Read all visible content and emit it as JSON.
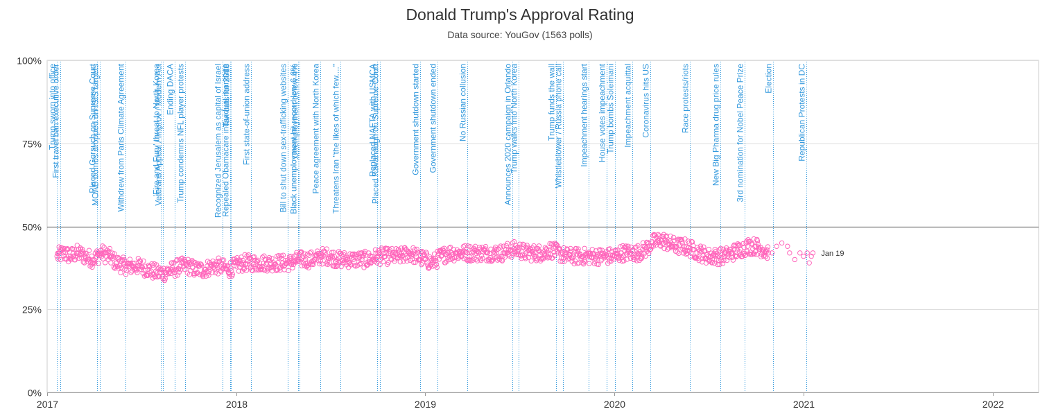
{
  "chart_data": {
    "type": "scatter",
    "title": "Donald Trump's Approval Rating",
    "subtitle": "Data source: YouGov (1563 polls)",
    "x_axis": {
      "type": "date",
      "min": "2017-01-01",
      "max": "2022-03-31",
      "tick_labels": [
        "2017",
        "2018",
        "2019",
        "2020",
        "2021",
        "2022"
      ],
      "tick_dates": [
        "2017-01-01",
        "2018-01-01",
        "2019-01-01",
        "2020-01-01",
        "2021-01-01",
        "2022-01-01"
      ]
    },
    "y_axis": {
      "min": 0,
      "max": 100,
      "ticks": [
        0,
        25,
        50,
        75,
        100
      ],
      "tick_labels": [
        "0%",
        "25%",
        "50%",
        "75%",
        "100%"
      ]
    },
    "grid": true,
    "reference_line": 50,
    "series": [
      {
        "color": "#ff66bb",
        "marker": "open-circle",
        "points": [
          [
            "2017-01-20",
            41
          ],
          [
            "2017-02-01",
            42
          ],
          [
            "2017-02-15",
            41
          ],
          [
            "2017-03-01",
            42
          ],
          [
            "2017-03-15",
            41
          ],
          [
            "2017-04-01",
            40
          ],
          [
            "2017-04-15",
            42
          ],
          [
            "2017-05-01",
            41
          ],
          [
            "2017-05-15",
            39
          ],
          [
            "2017-06-01",
            38
          ],
          [
            "2017-06-15",
            38
          ],
          [
            "2017-07-01",
            38
          ],
          [
            "2017-07-15",
            37
          ],
          [
            "2017-08-01",
            36
          ],
          [
            "2017-08-15",
            36
          ],
          [
            "2017-09-01",
            37
          ],
          [
            "2017-09-15",
            38
          ],
          [
            "2017-10-01",
            38
          ],
          [
            "2017-10-15",
            37
          ],
          [
            "2017-11-01",
            37
          ],
          [
            "2017-11-15",
            38
          ],
          [
            "2017-12-01",
            38
          ],
          [
            "2017-12-15",
            37
          ],
          [
            "2018-01-01",
            38
          ],
          [
            "2018-01-15",
            39
          ],
          [
            "2018-02-01",
            39
          ],
          [
            "2018-02-15",
            39
          ],
          [
            "2018-03-01",
            39
          ],
          [
            "2018-03-15",
            39
          ],
          [
            "2018-04-01",
            39
          ],
          [
            "2018-04-15",
            39
          ],
          [
            "2018-05-01",
            40
          ],
          [
            "2018-05-15",
            40
          ],
          [
            "2018-06-01",
            40
          ],
          [
            "2018-06-15",
            41
          ],
          [
            "2018-07-01",
            41
          ],
          [
            "2018-07-15",
            40
          ],
          [
            "2018-08-01",
            40
          ],
          [
            "2018-08-15",
            40
          ],
          [
            "2018-09-01",
            40
          ],
          [
            "2018-09-15",
            40
          ],
          [
            "2018-10-01",
            41
          ],
          [
            "2018-10-15",
            41
          ],
          [
            "2018-11-01",
            41
          ],
          [
            "2018-11-15",
            41
          ],
          [
            "2018-12-01",
            42
          ],
          [
            "2018-12-15",
            41
          ],
          [
            "2019-01-01",
            40
          ],
          [
            "2019-01-15",
            39
          ],
          [
            "2019-02-01",
            41
          ],
          [
            "2019-02-15",
            42
          ],
          [
            "2019-03-01",
            42
          ],
          [
            "2019-03-15",
            42
          ],
          [
            "2019-04-01",
            42
          ],
          [
            "2019-04-15",
            42
          ],
          [
            "2019-05-01",
            42
          ],
          [
            "2019-05-15",
            42
          ],
          [
            "2019-06-01",
            42
          ],
          [
            "2019-06-15",
            43
          ],
          [
            "2019-07-01",
            43
          ],
          [
            "2019-07-15",
            42
          ],
          [
            "2019-08-01",
            42
          ],
          [
            "2019-08-15",
            42
          ],
          [
            "2019-09-01",
            43
          ],
          [
            "2019-09-15",
            42
          ],
          [
            "2019-10-01",
            41
          ],
          [
            "2019-10-15",
            41
          ],
          [
            "2019-11-01",
            41
          ],
          [
            "2019-11-15",
            41
          ],
          [
            "2019-12-01",
            41
          ],
          [
            "2019-12-15",
            41
          ],
          [
            "2020-01-01",
            41
          ],
          [
            "2020-01-15",
            42
          ],
          [
            "2020-02-01",
            42
          ],
          [
            "2020-02-15",
            42
          ],
          [
            "2020-03-01",
            43
          ],
          [
            "2020-03-15",
            45
          ],
          [
            "2020-04-01",
            46
          ],
          [
            "2020-04-15",
            45
          ],
          [
            "2020-05-01",
            44
          ],
          [
            "2020-05-15",
            44
          ],
          [
            "2020-06-01",
            43
          ],
          [
            "2020-06-15",
            42
          ],
          [
            "2020-07-01",
            41
          ],
          [
            "2020-07-15",
            41
          ],
          [
            "2020-08-01",
            41
          ],
          [
            "2020-08-15",
            42
          ],
          [
            "2020-09-01",
            43
          ],
          [
            "2020-09-15",
            44
          ],
          [
            "2020-10-01",
            44
          ],
          [
            "2020-10-15",
            43
          ],
          [
            "2020-10-25",
            42
          ],
          [
            "2020-11-01",
            42
          ],
          [
            "2020-11-10",
            44
          ],
          [
            "2020-11-20",
            45
          ],
          [
            "2020-12-01",
            44
          ],
          [
            "2020-12-05",
            42
          ],
          [
            "2020-12-15",
            40
          ],
          [
            "2020-12-25",
            42
          ],
          [
            "2021-01-01",
            41
          ],
          [
            "2021-01-08",
            42
          ],
          [
            "2021-01-12",
            39
          ],
          [
            "2021-01-16",
            41
          ],
          [
            "2021-01-19",
            42
          ]
        ]
      }
    ],
    "end_label": {
      "text": "Jan 19",
      "date": "2021-01-19",
      "value": 42
    },
    "events": [
      {
        "date": "2017-01-20",
        "label": "Trump sworn into office"
      },
      {
        "date": "2017-01-27",
        "label": "First travel ban executive order"
      },
      {
        "date": "2017-04-07",
        "label": "Placed Gorsuch on Supreme Court"
      },
      {
        "date": "2017-04-13",
        "label": "MOAB bombs dropped on ISIS targets"
      },
      {
        "date": "2017-06-01",
        "label": "Withdrew from Paris Climate Agreement"
      },
      {
        "date": "2017-08-08",
        "label": "'Fire and Fury' threat to North Korea"
      },
      {
        "date": "2017-08-12",
        "label": "Veterans Appeal / Improv / Modern Act"
      },
      {
        "date": "2017-09-05",
        "label": "Ending DACA"
      },
      {
        "date": "2017-09-24",
        "label": "Trump condemns NFL player protests"
      },
      {
        "date": "2017-12-06",
        "label": "Recognized Jerusalem as capital of Israel"
      },
      {
        "date": "2017-12-20",
        "label": "Repealed Obamacare individual mandate"
      },
      {
        "date": "2017-12-22",
        "label": "Tax cuts for 2018"
      },
      {
        "date": "2018-01-30",
        "label": "First state-of-union address"
      },
      {
        "date": "2018-04-11",
        "label": "Bill to shut down sex-trafficking websites"
      },
      {
        "date": "2018-05-01",
        "label": "Black unemployment hit record low 6.6%"
      },
      {
        "date": "2018-05-04",
        "label": "Unemployment below 4%"
      },
      {
        "date": "2018-06-12",
        "label": "Peace agreement with North Korea"
      },
      {
        "date": "2018-07-22",
        "label": "Threatens Iran \"the likes of which few....\""
      },
      {
        "date": "2018-09-30",
        "label": "Replaced NAFTA with USMCA"
      },
      {
        "date": "2018-10-06",
        "label": "Placed Kavanaugh on Supreme Court"
      },
      {
        "date": "2018-12-22",
        "label": "Government shutdown started"
      },
      {
        "date": "2019-01-25",
        "label": "Government shutdown ended"
      },
      {
        "date": "2019-03-24",
        "label": "No Russian collusion"
      },
      {
        "date": "2019-06-18",
        "label": "Announces 2020 campaign in Orlando"
      },
      {
        "date": "2019-06-30",
        "label": "Trump walks into North Korea"
      },
      {
        "date": "2019-09-11",
        "label": "Trump funds the wall"
      },
      {
        "date": "2019-09-24",
        "label": "Whistleblower / Russia phone call"
      },
      {
        "date": "2019-11-13",
        "label": "Impeachment hearings start"
      },
      {
        "date": "2019-12-18",
        "label": "House votes impeachment"
      },
      {
        "date": "2020-01-03",
        "label": "Trump bombs Soleimani"
      },
      {
        "date": "2020-02-05",
        "label": "Impeachment acquittal"
      },
      {
        "date": "2020-03-11",
        "label": "Coronavirus hits US"
      },
      {
        "date": "2020-05-26",
        "label": "Race protests/riots"
      },
      {
        "date": "2020-07-24",
        "label": "New Big Pharma drug price rules"
      },
      {
        "date": "2020-09-09",
        "label": "3rd nomination for Nobel Peace Prize"
      },
      {
        "date": "2020-11-03",
        "label": "Election"
      },
      {
        "date": "2021-01-06",
        "label": "Republican Protests in DC"
      }
    ]
  }
}
